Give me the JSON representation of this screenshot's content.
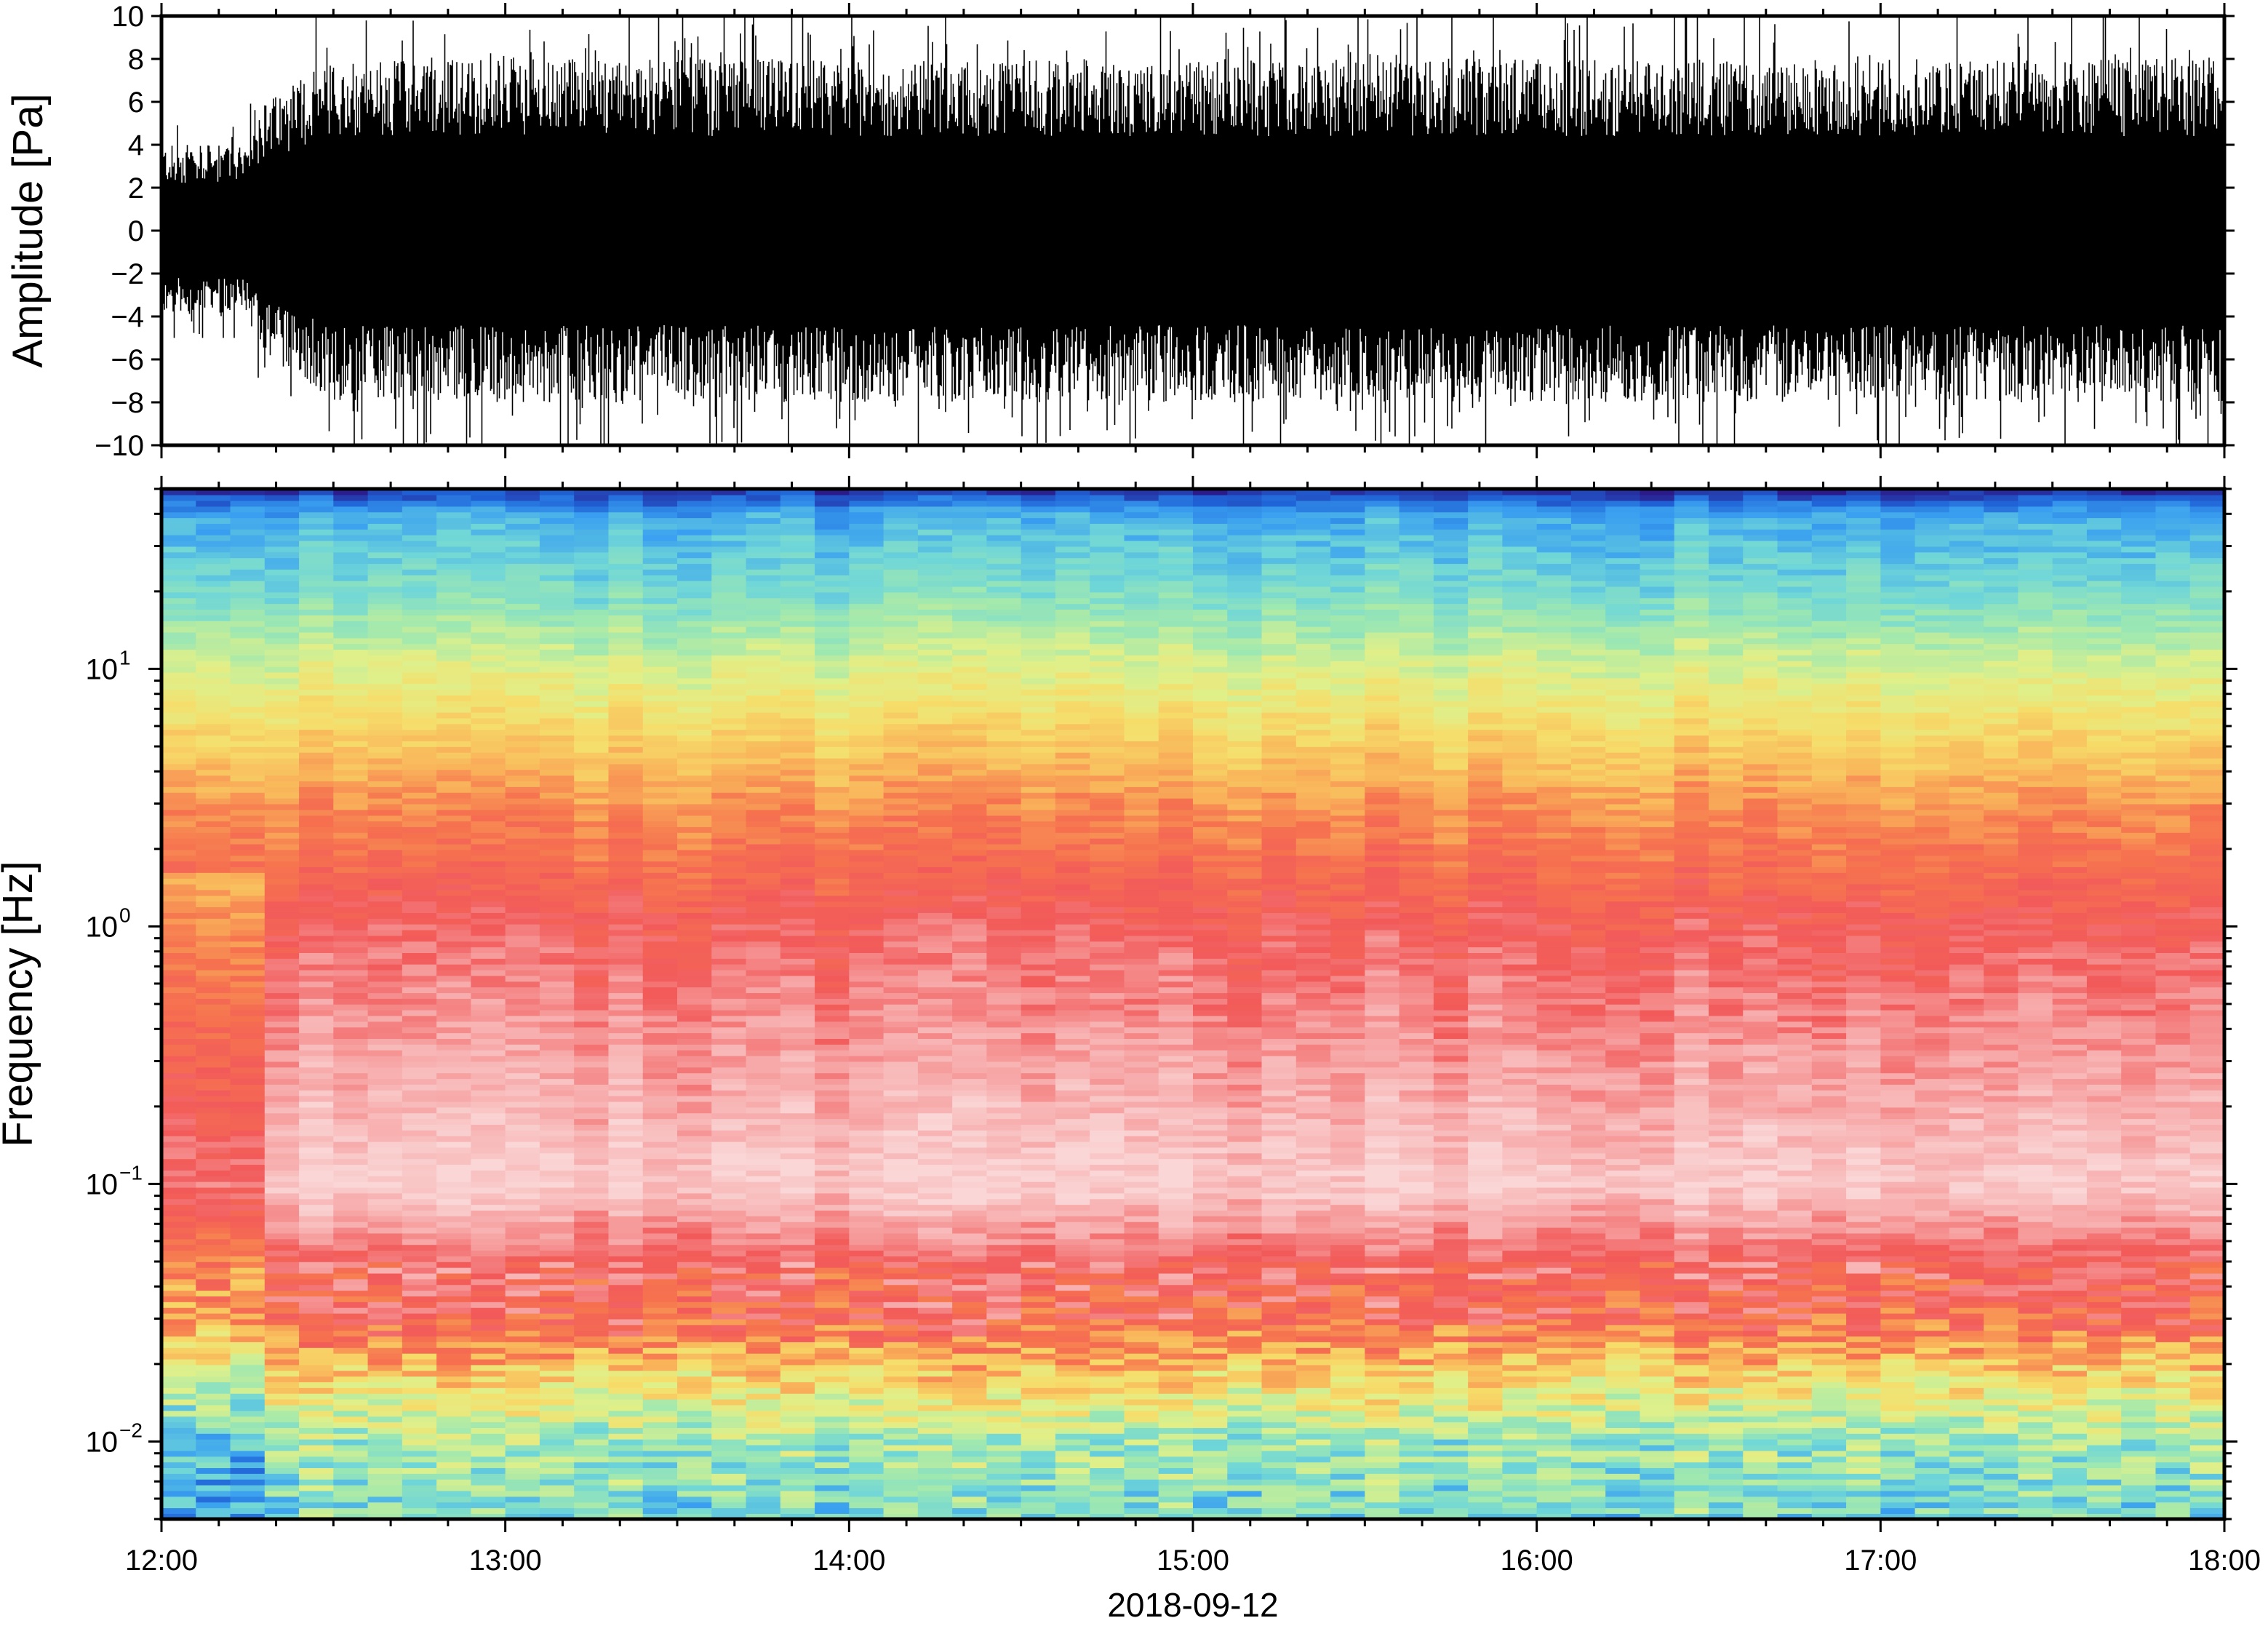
{
  "chart_data": [
    {
      "type": "line",
      "title": "",
      "xlabel": "",
      "ylabel": "Amplitude [Pa]",
      "ylim": [
        -10,
        10
      ],
      "y_ticks": [
        {
          "value": 10,
          "label": "10"
        },
        {
          "value": 8,
          "label": "8"
        },
        {
          "value": 6,
          "label": "6"
        },
        {
          "value": 4,
          "label": "4"
        },
        {
          "value": 2,
          "label": "2"
        },
        {
          "value": 0,
          "label": "0"
        },
        {
          "value": -2,
          "label": "−2"
        },
        {
          "value": -4,
          "label": "−4"
        },
        {
          "value": -6,
          "label": "−6"
        },
        {
          "value": -8,
          "label": "−8"
        },
        {
          "value": -10,
          "label": "−10"
        }
      ],
      "x_range": [
        "12:00",
        "18:00"
      ],
      "grid": false,
      "series": [
        {
          "color": "#000000",
          "envelope": {
            "time": [
              "12:00",
              "12:15",
              "12:18",
              "12:30",
              "13:00",
              "14:00",
              "15:00",
              "16:00",
              "17:00",
              "18:00"
            ],
            "typical_abs_peak": [
              4,
              4,
              6,
              8,
              8,
              8,
              8,
              8,
              8,
              8
            ],
            "max_abs": [
              5,
              5,
              10,
              10,
              10,
              10,
              10,
              10,
              10,
              10
            ]
          }
        }
      ]
    },
    {
      "type": "heatmap",
      "title": "",
      "xlabel": "2018-09-12",
      "ylabel": "Frequency [Hz]",
      "y_scale": "log",
      "ylim": [
        0.005,
        50
      ],
      "y_ticks": [
        {
          "value": 0.01,
          "base": "10",
          "exp": "−2"
        },
        {
          "value": 0.1,
          "base": "10",
          "exp": "−1"
        },
        {
          "value": 1,
          "base": "10",
          "exp": "0"
        },
        {
          "value": 10,
          "base": "10",
          "exp": "1"
        }
      ],
      "x_ticks": [
        "12:00",
        "13:00",
        "14:00",
        "15:00",
        "16:00",
        "17:00",
        "18:00"
      ],
      "grid": false,
      "colormap": [
        "#2b1a8a",
        "#1f62d6",
        "#3aa0f0",
        "#6fd6d8",
        "#9fe8b0",
        "#dff08a",
        "#f6dd6a",
        "#f9b45a",
        "#f6734f",
        "#f25a5a",
        "#f7a7a7",
        "#fad6d6"
      ],
      "profile": {
        "frequency_hz": [
          0.005,
          0.01,
          0.02,
          0.03,
          0.05,
          0.1,
          0.3,
          1,
          3,
          10,
          20,
          40,
          50
        ],
        "color_level": [
          0.3,
          0.36,
          0.6,
          0.78,
          0.82,
          0.98,
          0.9,
          0.82,
          0.68,
          0.45,
          0.3,
          0.2,
          0.02
        ]
      },
      "features": [
        {
          "time": "12:00–12:17",
          "note": "lower energy below ~1 Hz"
        }
      ]
    }
  ]
}
